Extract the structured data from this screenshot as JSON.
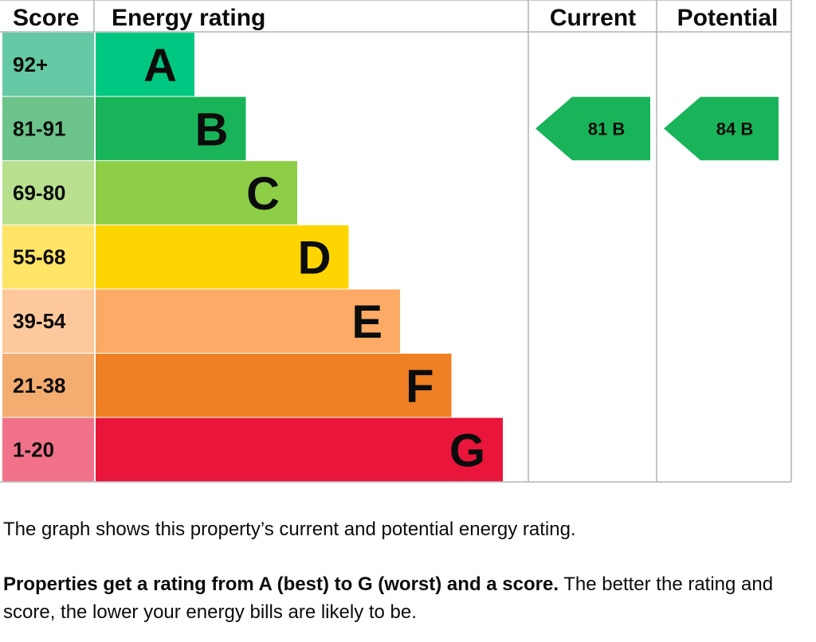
{
  "chart_data": {
    "type": "bar",
    "headers": {
      "score": "Score",
      "rating": "Energy rating",
      "current": "Current",
      "potential": "Potential"
    },
    "bands": [
      {
        "letter": "A",
        "range": "92+",
        "min": 92,
        "max": 100,
        "color": "#00c781",
        "score_bg": "#64c9a4"
      },
      {
        "letter": "B",
        "range": "81-91",
        "min": 81,
        "max": 91,
        "color": "#19b459",
        "score_bg": "#6cc48b"
      },
      {
        "letter": "C",
        "range": "69-80",
        "min": 69,
        "max": 80,
        "color": "#8dce46",
        "score_bg": "#b8e08f"
      },
      {
        "letter": "D",
        "range": "55-68",
        "min": 55,
        "max": 68,
        "color": "#ffd500",
        "score_bg": "#ffe466"
      },
      {
        "letter": "E",
        "range": "39-54",
        "min": 39,
        "max": 54,
        "color": "#fcaa65",
        "score_bg": "#fdc89b"
      },
      {
        "letter": "F",
        "range": "21-38",
        "min": 21,
        "max": 38,
        "color": "#ef8023",
        "score_bg": "#f4ad70"
      },
      {
        "letter": "G",
        "range": "1-20",
        "min": 1,
        "max": 20,
        "color": "#e9153b",
        "score_bg": "#f07189"
      }
    ],
    "current": {
      "score": 81,
      "letter": "B",
      "color": "#19b459"
    },
    "potential": {
      "score": 84,
      "letter": "B",
      "color": "#19b459"
    }
  },
  "description": {
    "line1": "The graph shows this property’s current and potential energy rating.",
    "bold": "Properties get a rating from A (best) to G (worst) and a score.",
    "rest": " The better the rating and score, the lower your energy bills are likely to be."
  }
}
